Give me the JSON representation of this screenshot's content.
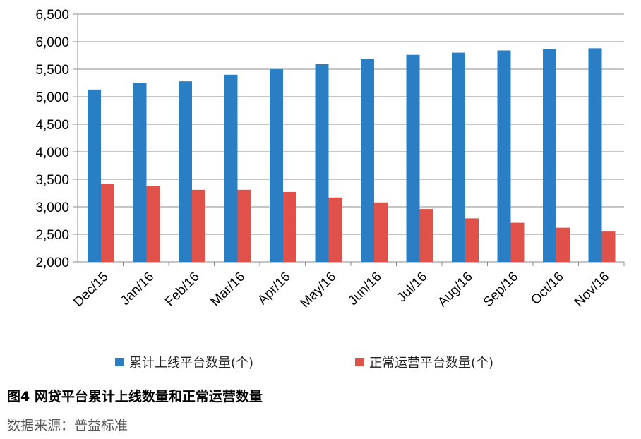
{
  "chart_data": {
    "type": "bar",
    "categories": [
      "Dec/15",
      "Jan/16",
      "Feb/16",
      "Mar/16",
      "Apr/16",
      "May/16",
      "Jun/16",
      "Jul/16",
      "Aug/16",
      "Sep/16",
      "Oct/16",
      "Nov/16"
    ],
    "series": [
      {
        "name": "累计上线平台数量(个)",
        "color": "#2a7fc4",
        "values": [
          5130,
          5250,
          5280,
          5400,
          5500,
          5590,
          5690,
          5760,
          5800,
          5840,
          5860,
          5880
        ]
      },
      {
        "name": "正常运营平台数量(个)",
        "color": "#e05149",
        "values": [
          3420,
          3380,
          3310,
          3310,
          3270,
          3170,
          3080,
          2960,
          2790,
          2710,
          2620,
          2550
        ]
      }
    ],
    "ylim": [
      2000,
      6500
    ],
    "yticks": [
      2000,
      2500,
      3000,
      3500,
      4000,
      4500,
      5000,
      5500,
      6000,
      6500
    ],
    "ytick_labels": [
      "2,000",
      "2,500",
      "3,000",
      "3,500",
      "4,000",
      "4,500",
      "5,000",
      "5,500",
      "6,000",
      "6,500"
    ],
    "grid": true,
    "legend_position": "bottom",
    "title": "图4 网贷平台累计上线数量和正常运营数量",
    "source": "数据来源：普益标准"
  }
}
